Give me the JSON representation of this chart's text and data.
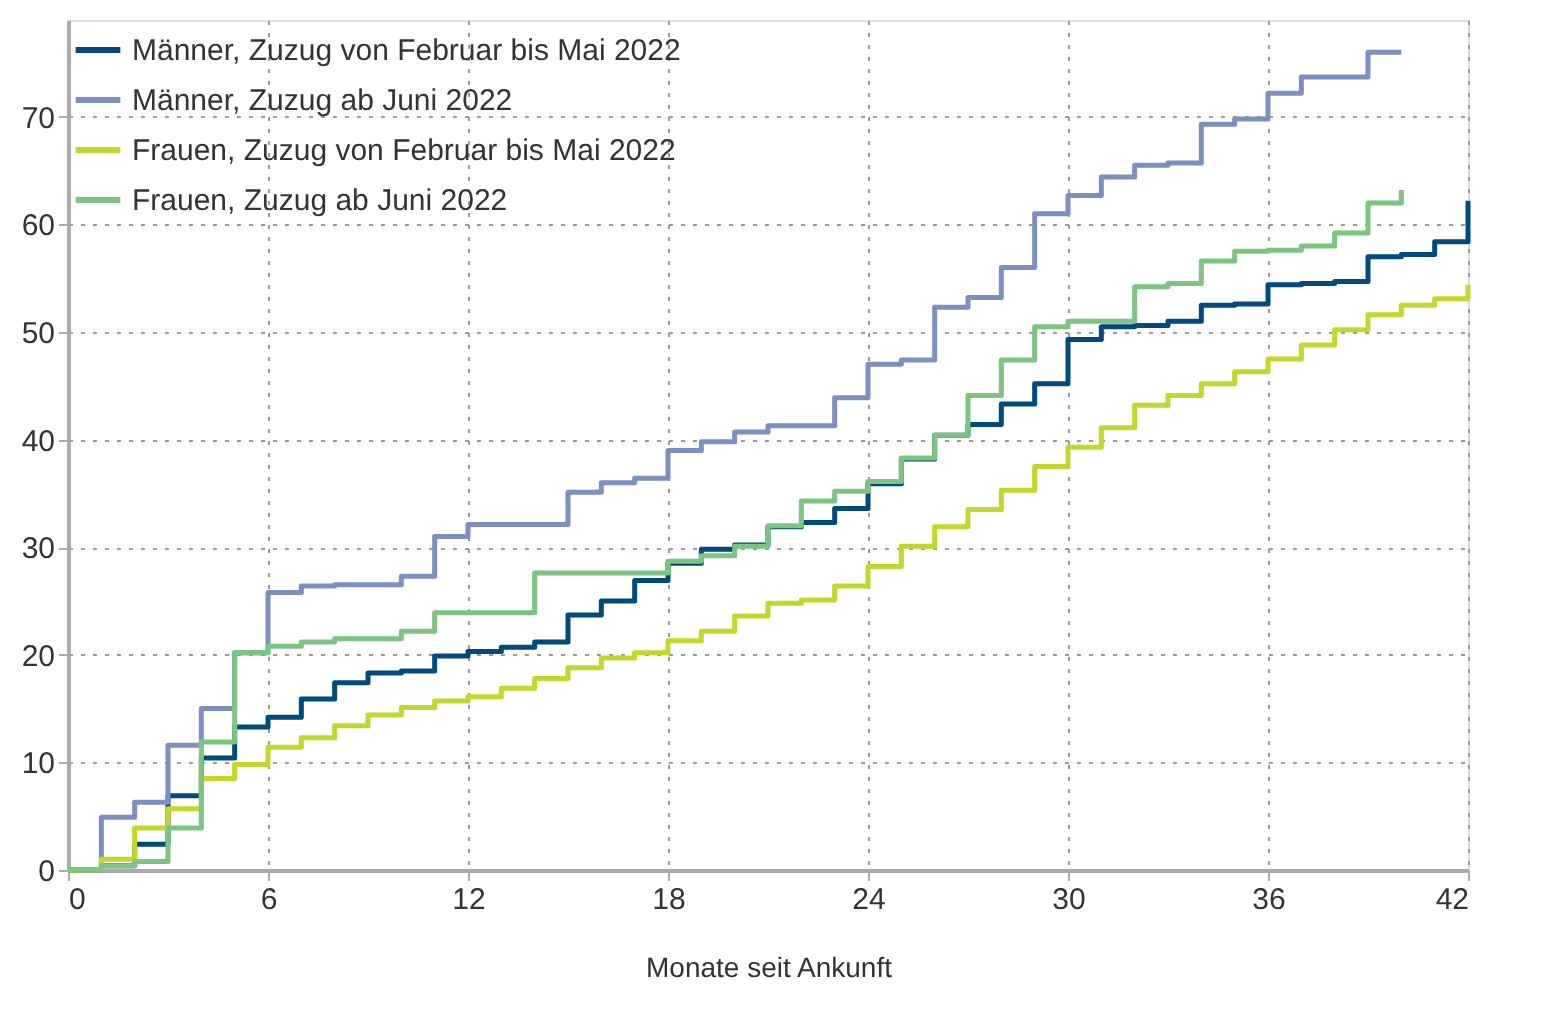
{
  "chart_data": {
    "type": "step",
    "xlabel": "Monate seit Ankunft",
    "x": [
      0,
      1,
      2,
      3,
      4,
      5,
      6,
      7,
      8,
      9,
      10,
      11,
      12,
      13,
      14,
      15,
      16,
      17,
      18,
      19,
      20,
      21,
      22,
      23,
      24,
      25,
      26,
      27,
      28,
      29,
      30,
      31,
      32,
      33,
      34,
      35,
      36,
      37,
      38,
      39,
      40,
      41,
      42
    ],
    "series": [
      {
        "name": "Männer, Zuzug von Februar bis Mai 2022",
        "color": "#004b7c",
        "values": [
          0,
          0.4,
          2.4,
          6.9,
          10.4,
          13.3,
          14.2,
          15.9,
          17.4,
          18.3,
          18.5,
          19.9,
          20.3,
          20.7,
          21.2,
          23.7,
          25,
          26.9,
          28.5,
          29.8,
          30.2,
          31.9,
          32.3,
          33.6,
          35.9,
          38.2,
          40.4,
          41.4,
          43.3,
          45.2,
          49.3,
          50.5,
          50.6,
          51.0,
          52.5,
          52.6,
          54.4,
          54.5,
          54.7,
          57.0,
          57.2,
          58.4,
          62.2
        ]
      },
      {
        "name": "Männer, Zuzug ab Juni 2022",
        "color": "#7b8fc3",
        "values": [
          0,
          4.9,
          6.3,
          11.6,
          15,
          20.2,
          25.8,
          26.4,
          26.5,
          26.5,
          27.3,
          31,
          32.1,
          32.1,
          32.1,
          35.1,
          36,
          36.4,
          39,
          39.8,
          40.7,
          41.3,
          41.3,
          43.9,
          47,
          47.4,
          52.3,
          53.2,
          56,
          61,
          62.7,
          64.4,
          65.5,
          65.7,
          69.3,
          69.8,
          72.2,
          73.7,
          73.7,
          76,
          76,
          null,
          null
        ]
      },
      {
        "name": "Frauen, Zuzug von Februar bis Mai 2022",
        "color": "#c3d62b",
        "values": [
          0,
          1.0,
          3.9,
          5.7,
          8.5,
          9.8,
          11.4,
          12.3,
          13.4,
          14.4,
          15.1,
          15.7,
          16.1,
          16.9,
          17.8,
          18.8,
          19.7,
          20.2,
          21.3,
          22.2,
          23.6,
          24.8,
          25.1,
          26.4,
          28.2,
          30.1,
          31.9,
          33.5,
          35.3,
          37.5,
          39.3,
          41.1,
          43.2,
          44.1,
          45.2,
          46.3,
          47.5,
          48.8,
          50.2,
          51.6,
          52.5,
          53.1,
          54.4
        ]
      },
      {
        "name": "Frauen, Zuzug ab Juni 2022",
        "color": "#7cc47f",
        "values": [
          0,
          0.4,
          0.8,
          3.9,
          11.9,
          20.2,
          20.8,
          21.2,
          21.5,
          21.5,
          22.2,
          23.9,
          23.9,
          23.9,
          27.6,
          27.6,
          27.6,
          27.6,
          28.7,
          29.2,
          30.1,
          32.0,
          34.3,
          35.2,
          36.1,
          38.3,
          40.4,
          44.1,
          47.4,
          50.5,
          51.0,
          51.0,
          54.2,
          54.5,
          56.6,
          57.5,
          57.6,
          58.0,
          59.2,
          62.0,
          63.2,
          null,
          null
        ]
      }
    ],
    "xlim": [
      0,
      42
    ],
    "xticks": [
      0,
      6,
      12,
      18,
      24,
      30,
      36,
      42
    ],
    "ylim": [
      0,
      79
    ],
    "yticks": [
      0,
      10,
      20,
      30,
      40,
      50,
      60,
      70
    ],
    "grid": true,
    "legend": "top left",
    "line_style": "solid",
    "marker": "none"
  }
}
